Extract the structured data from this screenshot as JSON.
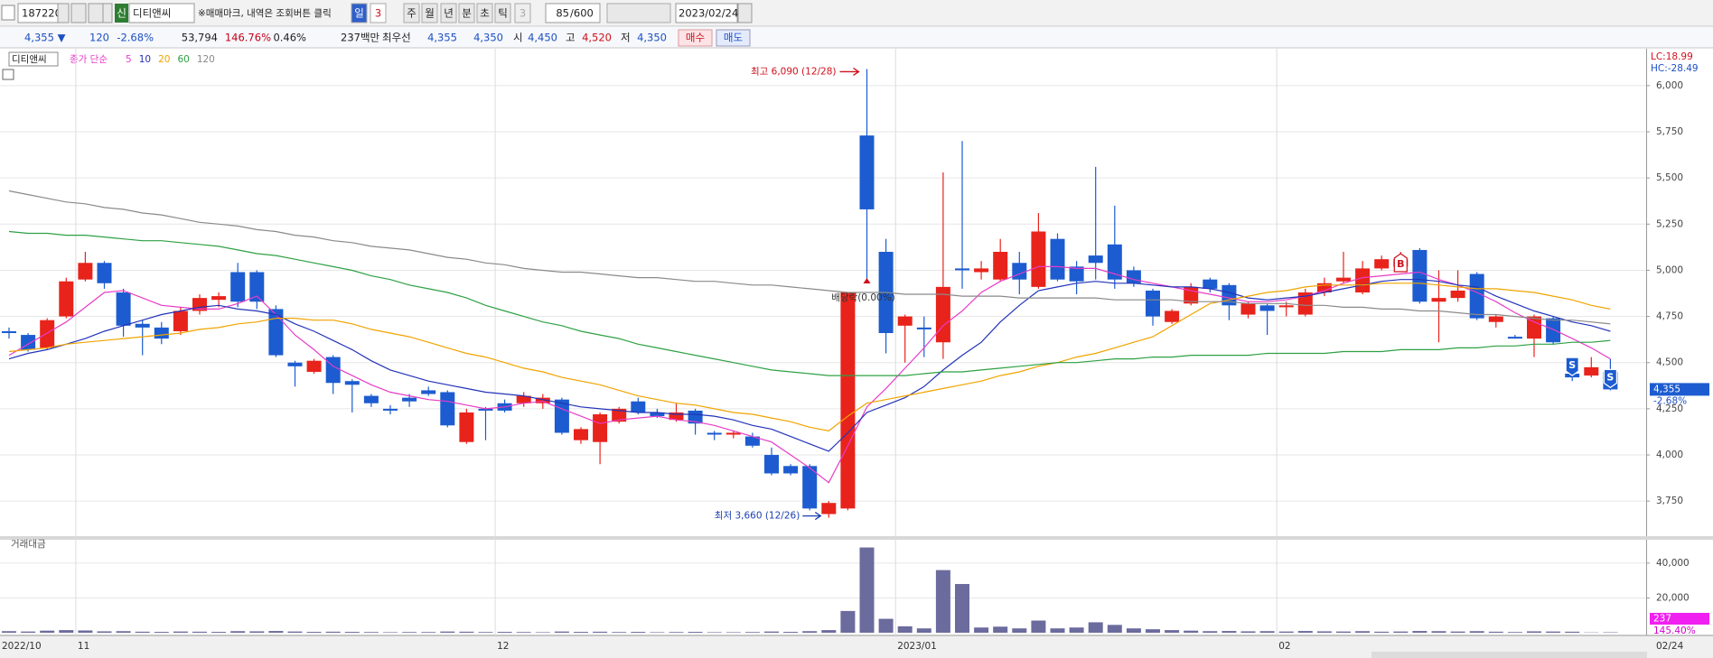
{
  "toolbar": {
    "code": "187220",
    "badge": "신",
    "name": "디티앤씨",
    "notice": "※매매마크, 내역은 조회버튼 클릭",
    "periods": [
      "일",
      "3",
      "주",
      "월",
      "년",
      "분",
      "초",
      "틱",
      "3"
    ],
    "count": "85",
    "count_max": "/600",
    "date": "2023/02/24"
  },
  "quote": {
    "price": "4,355 ▼",
    "change": "120",
    "change_pct": "-2.68%",
    "volume": "53,794",
    "volume_ratio": "146.76%",
    "turnover": "0.46%",
    "value": "237백만",
    "best_label": "최우선",
    "best_ask": "4,355",
    "best_bid": "4,350",
    "open_label": "시",
    "open": "4,450",
    "high_label": "고",
    "high": "4,520",
    "low_label": "저",
    "low": "4,350",
    "buy": "매수",
    "sell": "매도"
  },
  "chart_data": [
    {
      "type": "candlestick",
      "title": "디티앤씨",
      "ma_label": "종가 단순",
      "open": [
        4670,
        4650,
        4580,
        4750,
        4950,
        5040,
        4880,
        4710,
        4690,
        4670,
        4780,
        4840,
        4990,
        4990,
        4790,
        4500,
        4450,
        4530,
        4400,
        4320,
        4250,
        4310,
        4350,
        4340,
        4070,
        4250,
        4280,
        4280,
        4280,
        4300,
        4080,
        4070,
        4180,
        4290,
        4230,
        4190,
        4240,
        4120,
        4110,
        4100,
        4000,
        3940,
        3940,
        3680,
        3710,
        5730,
        5100,
        4700,
        4690,
        4610,
        5010,
        4990,
        4950,
        5040,
        4910,
        5170,
        5020,
        5080,
        5140,
        5000,
        4890,
        4720,
        4820,
        4950,
        4920,
        4760,
        4810,
        4800,
        4760,
        4880,
        4940,
        4880,
        5010,
        5020,
        5110,
        4830,
        4850,
        4980,
        4720,
        4640,
        4630,
        4740,
        4440,
        4430,
        4450
      ],
      "high": [
        4690,
        4660,
        4740,
        4960,
        5100,
        5050,
        4900,
        4730,
        4720,
        4800,
        4870,
        4880,
        5040,
        5000,
        4810,
        4510,
        4520,
        4540,
        4410,
        4330,
        4270,
        4330,
        4370,
        4350,
        4250,
        4260,
        4300,
        4340,
        4330,
        4310,
        4150,
        4230,
        4260,
        4310,
        4250,
        4280,
        4250,
        4130,
        4130,
        4120,
        4040,
        3950,
        3950,
        3750,
        4880,
        6090,
        5170,
        4760,
        4750,
        5530,
        5700,
        5050,
        5170,
        5100,
        5310,
        5200,
        5050,
        5560,
        5350,
        5020,
        4900,
        4790,
        4930,
        4960,
        4930,
        4830,
        4820,
        4830,
        4900,
        4960,
        5100,
        5050,
        5080,
        5100,
        5120,
        5000,
        5000,
        4990,
        4760,
        4650,
        4760,
        4750,
        4450,
        4530,
        4520
      ],
      "low": [
        4630,
        4560,
        4570,
        4740,
        4940,
        4900,
        4640,
        4540,
        4600,
        4650,
        4760,
        4800,
        4800,
        4790,
        4530,
        4370,
        4440,
        4330,
        4230,
        4260,
        4220,
        4260,
        4320,
        4150,
        4060,
        4080,
        4230,
        4260,
        4250,
        4110,
        4060,
        3950,
        4170,
        4220,
        4200,
        4180,
        4110,
        4080,
        4090,
        4040,
        3890,
        3890,
        3700,
        3660,
        3700,
        4950,
        4550,
        4500,
        4530,
        4520,
        4900,
        4950,
        4940,
        4870,
        4900,
        4940,
        4870,
        4950,
        4900,
        4910,
        4700,
        4710,
        4810,
        4880,
        4730,
        4740,
        4650,
        4750,
        4750,
        4860,
        4930,
        4870,
        5000,
        5010,
        4820,
        4610,
        4830,
        4730,
        4690,
        4630,
        4530,
        4600,
        4400,
        4420,
        4350
      ],
      "close": [
        4660,
        4570,
        4730,
        4940,
        5040,
        4930,
        4700,
        4690,
        4630,
        4780,
        4850,
        4860,
        4830,
        4830,
        4540,
        4480,
        4510,
        4390,
        4380,
        4280,
        4240,
        4290,
        4330,
        4160,
        4230,
        4240,
        4240,
        4320,
        4310,
        4120,
        4140,
        4220,
        4250,
        4230,
        4210,
        4230,
        4170,
        4110,
        4120,
        4050,
        3900,
        3900,
        3710,
        3740,
        4880,
        5330,
        4660,
        4750,
        4680,
        4910,
        5000,
        5010,
        5100,
        4950,
        5210,
        4950,
        4940,
        5040,
        4950,
        4930,
        4750,
        4780,
        4910,
        4900,
        4810,
        4820,
        4780,
        4810,
        4880,
        4930,
        4960,
        5010,
        5060,
        5060,
        4830,
        4850,
        4890,
        4740,
        4750,
        4630,
        4750,
        4610,
        4420,
        4475,
        4355
      ],
      "up_color": "#e8231b",
      "down_color": "#1c5cd0",
      "series": [
        {
          "name": "5",
          "color": "#e83cc8",
          "values": [
            4540,
            4600,
            4660,
            4720,
            4800,
            4880,
            4890,
            4850,
            4810,
            4800,
            4790,
            4790,
            4820,
            4860,
            4760,
            4650,
            4570,
            4480,
            4430,
            4380,
            4340,
            4320,
            4300,
            4290,
            4270,
            4250,
            4260,
            4280,
            4290,
            4250,
            4210,
            4170,
            4190,
            4200,
            4210,
            4190,
            4180,
            4160,
            4130,
            4100,
            4070,
            4000,
            3930,
            3850,
            4050,
            4260,
            4360,
            4470,
            4580,
            4700,
            4780,
            4880,
            4940,
            4980,
            5020,
            5020,
            5010,
            5010,
            4980,
            4950,
            4930,
            4910,
            4890,
            4870,
            4850,
            4830,
            4830,
            4840,
            4860,
            4890,
            4930,
            4960,
            4970,
            4980,
            4990,
            4950,
            4920,
            4880,
            4830,
            4770,
            4720,
            4680,
            4630,
            4580,
            4520
          ]
        },
        {
          "name": "10",
          "color": "#2333b8",
          "values": [
            4520,
            4550,
            4570,
            4600,
            4630,
            4670,
            4700,
            4730,
            4760,
            4780,
            4800,
            4810,
            4790,
            4780,
            4760,
            4710,
            4670,
            4620,
            4570,
            4510,
            4460,
            4430,
            4400,
            4380,
            4360,
            4340,
            4330,
            4320,
            4300,
            4280,
            4260,
            4250,
            4240,
            4230,
            4230,
            4220,
            4220,
            4210,
            4190,
            4160,
            4140,
            4100,
            4060,
            4020,
            4120,
            4230,
            4270,
            4310,
            4370,
            4460,
            4540,
            4610,
            4720,
            4810,
            4890,
            4910,
            4930,
            4940,
            4930,
            4930,
            4920,
            4910,
            4910,
            4900,
            4880,
            4850,
            4840,
            4850,
            4860,
            4880,
            4900,
            4920,
            4940,
            4950,
            4950,
            4940,
            4920,
            4910,
            4860,
            4820,
            4780,
            4750,
            4720,
            4700,
            4670
          ]
        },
        {
          "name": "20",
          "color": "#f0a400",
          "values": [
            4560,
            4570,
            4580,
            4600,
            4610,
            4620,
            4630,
            4640,
            4650,
            4660,
            4680,
            4690,
            4710,
            4720,
            4740,
            4740,
            4730,
            4730,
            4710,
            4680,
            4660,
            4640,
            4610,
            4580,
            4550,
            4530,
            4500,
            4470,
            4450,
            4420,
            4400,
            4380,
            4350,
            4320,
            4300,
            4280,
            4270,
            4250,
            4230,
            4220,
            4200,
            4180,
            4150,
            4130,
            4210,
            4280,
            4300,
            4320,
            4340,
            4360,
            4380,
            4400,
            4430,
            4450,
            4480,
            4500,
            4530,
            4550,
            4580,
            4610,
            4640,
            4700,
            4760,
            4820,
            4840,
            4860,
            4880,
            4890,
            4910,
            4920,
            4920,
            4920,
            4930,
            4930,
            4930,
            4920,
            4910,
            4900,
            4900,
            4890,
            4880,
            4860,
            4840,
            4810,
            4790
          ]
        },
        {
          "name": "60",
          "color": "#2ea043",
          "values": [
            5210,
            5200,
            5200,
            5190,
            5190,
            5180,
            5170,
            5160,
            5160,
            5150,
            5140,
            5130,
            5110,
            5090,
            5080,
            5060,
            5040,
            5020,
            5000,
            4970,
            4950,
            4920,
            4900,
            4880,
            4850,
            4810,
            4780,
            4750,
            4720,
            4700,
            4670,
            4650,
            4630,
            4600,
            4580,
            4560,
            4540,
            4520,
            4500,
            4480,
            4460,
            4450,
            4440,
            4430,
            4430,
            4430,
            4430,
            4430,
            4440,
            4450,
            4450,
            4460,
            4470,
            4480,
            4490,
            4500,
            4500,
            4510,
            4520,
            4520,
            4530,
            4530,
            4540,
            4540,
            4540,
            4540,
            4550,
            4550,
            4550,
            4550,
            4560,
            4560,
            4560,
            4570,
            4570,
            4570,
            4580,
            4580,
            4590,
            4590,
            4600,
            4600,
            4610,
            4610,
            4620
          ]
        },
        {
          "name": "120",
          "color": "#8a8a8a",
          "values": [
            5430,
            5410,
            5390,
            5370,
            5360,
            5340,
            5330,
            5310,
            5300,
            5280,
            5260,
            5250,
            5240,
            5220,
            5210,
            5190,
            5180,
            5160,
            5150,
            5130,
            5120,
            5110,
            5090,
            5070,
            5060,
            5040,
            5030,
            5010,
            5000,
            4990,
            4990,
            4980,
            4970,
            4960,
            4960,
            4950,
            4940,
            4940,
            4930,
            4920,
            4920,
            4910,
            4900,
            4890,
            4880,
            4880,
            4880,
            4870,
            4870,
            4870,
            4860,
            4860,
            4860,
            4850,
            4850,
            4850,
            4850,
            4850,
            4840,
            4840,
            4840,
            4840,
            4830,
            4830,
            4830,
            4820,
            4820,
            4820,
            4810,
            4810,
            4800,
            4800,
            4790,
            4790,
            4780,
            4780,
            4770,
            4760,
            4760,
            4750,
            4740,
            4730,
            4730,
            4720,
            4710
          ]
        }
      ],
      "ylim": [
        3570,
        6190
      ],
      "yticks": [
        {
          "value": 3750,
          "label": "3,750"
        },
        {
          "value": 4000,
          "label": "4,000"
        },
        {
          "value": 4250,
          "label": "4,250"
        },
        {
          "value": 4500,
          "label": "4,500"
        },
        {
          "value": 4750,
          "label": "4,750"
        },
        {
          "value": 5000,
          "label": "5,000"
        },
        {
          "value": 5250,
          "label": "5,250"
        },
        {
          "value": 5500,
          "label": "5,500"
        },
        {
          "value": 5750,
          "label": "5,750"
        },
        {
          "value": 6000,
          "label": "6,000"
        }
      ],
      "grid": true,
      "annotations": {
        "high": "최고 6,090 (12/28)",
        "low": "최저 3,660 (12/26)",
        "event": "배당락(0.00%)"
      },
      "trade_marks": [
        "B",
        "S",
        "S"
      ],
      "last_price": "4,355",
      "last_change": "-2.68%",
      "lc": "LC:18.99",
      "hc": "HC:-28.49"
    },
    {
      "type": "bar",
      "title": "거래대금",
      "categories": [
        "2022/10",
        null,
        null,
        null,
        "11",
        null,
        null,
        null,
        null,
        null,
        null,
        null,
        null,
        null,
        null,
        null,
        null,
        null,
        null,
        null,
        null,
        null,
        null,
        null,
        null,
        null,
        "12",
        null,
        null,
        null,
        null,
        null,
        null,
        null,
        null,
        null,
        null,
        null,
        null,
        null,
        null,
        null,
        null,
        null,
        null,
        null,
        null,
        "2023/01",
        null,
        null,
        null,
        null,
        null,
        null,
        null,
        null,
        null,
        null,
        null,
        null,
        null,
        null,
        null,
        null,
        null,
        null,
        null,
        "02",
        null,
        null,
        null,
        null,
        null,
        null,
        null,
        null,
        null,
        null,
        null,
        null,
        null,
        null,
        null,
        null,
        "02/24"
      ],
      "values": [
        900,
        700,
        1200,
        1500,
        1300,
        800,
        900,
        600,
        500,
        700,
        600,
        500,
        900,
        800,
        1000,
        700,
        500,
        600,
        500,
        400,
        300,
        400,
        400,
        700,
        600,
        400,
        500,
        400,
        300,
        700,
        500,
        600,
        400,
        500,
        300,
        400,
        500,
        300,
        300,
        400,
        700,
        500,
        900,
        1500,
        12500,
        49000,
        8000,
        3700,
        2500,
        36000,
        28000,
        3000,
        3500,
        2500,
        7000,
        2500,
        3000,
        6000,
        4500,
        2500,
        2000,
        1500,
        1200,
        900,
        1000,
        800,
        900,
        700,
        1000,
        800,
        700,
        900,
        600,
        700,
        1000,
        900,
        700,
        900,
        600,
        400,
        800,
        700,
        600,
        163,
        237
      ],
      "color": "#6b6b9e",
      "ylim": [
        0,
        52400
      ],
      "yticks": [
        {
          "value": 20000,
          "label": "20,000"
        },
        {
          "value": 40000,
          "label": "40,000"
        }
      ],
      "last_value": "237",
      "last_change": "145.40%"
    }
  ]
}
